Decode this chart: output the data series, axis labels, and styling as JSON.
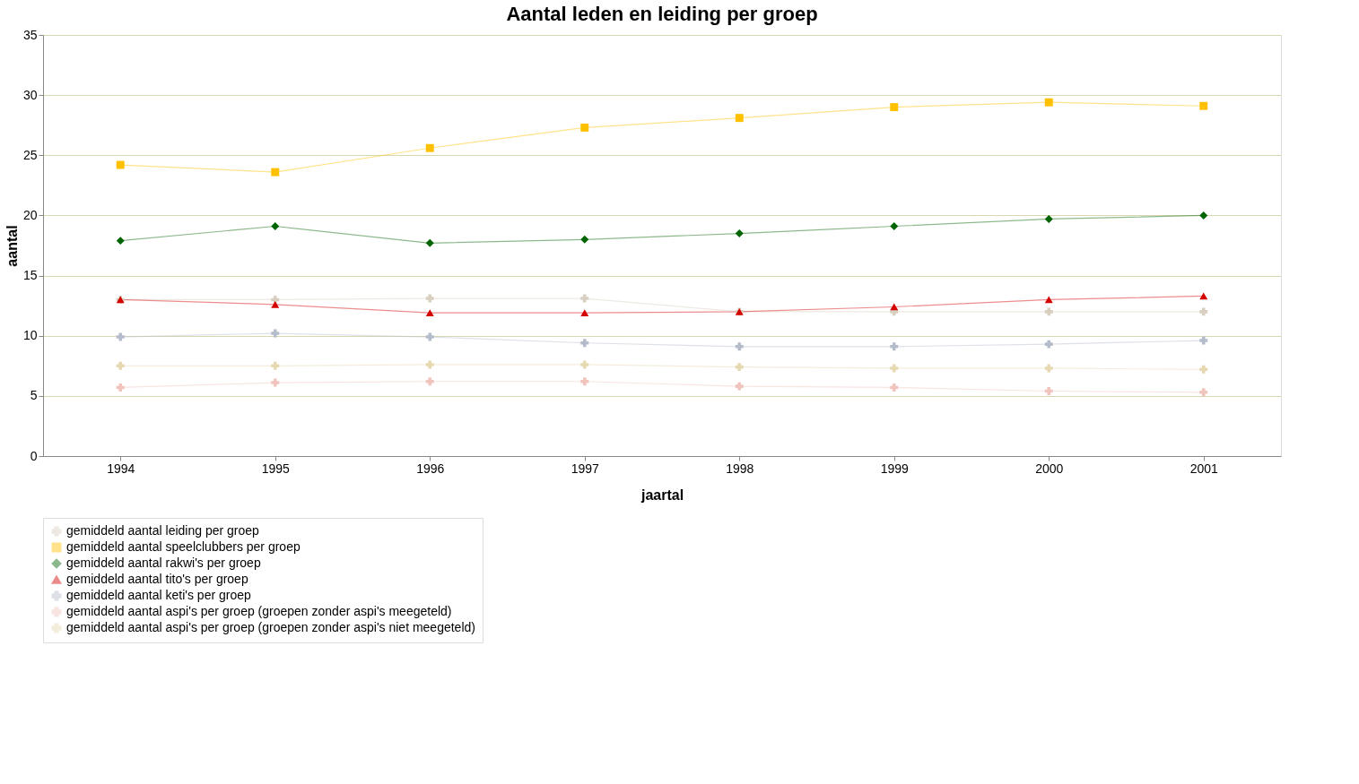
{
  "chart_data": {
    "type": "line",
    "title": "Aantal leden en leiding per groep",
    "xlabel": "jaartal",
    "ylabel": "aantal",
    "categories": [
      "1994",
      "1995",
      "1996",
      "1997",
      "1998",
      "1999",
      "2000",
      "2001"
    ],
    "ylim": [
      0,
      35
    ],
    "yticks": [
      0,
      5,
      10,
      15,
      20,
      25,
      30,
      35
    ],
    "grid": "y",
    "legend": "bottom",
    "line_style": "solid",
    "series": [
      {
        "name": "gemiddeld aantal leiding per groep",
        "color": "#d8cfc0",
        "marker": "cross",
        "values": [
          13.0,
          13.0,
          13.1,
          13.1,
          12.0,
          12.0,
          12.0,
          12.0
        ]
      },
      {
        "name": "gemiddeld aantal speelclubbers per groep",
        "color": "#ffc000",
        "marker": "square",
        "values": [
          24.2,
          23.6,
          25.6,
          27.3,
          28.1,
          29.0,
          29.4,
          29.1
        ]
      },
      {
        "name": "gemiddeld aantal rakwi's per groep",
        "color": "#006400",
        "marker": "diamond",
        "values": [
          17.9,
          19.1,
          17.7,
          18.0,
          18.5,
          19.1,
          19.7,
          20.0
        ]
      },
      {
        "name": "gemiddeld aantal tito's per groep",
        "color": "#d40000",
        "marker": "triangle",
        "values": [
          13.0,
          12.6,
          11.9,
          11.9,
          12.0,
          12.4,
          13.0,
          13.3
        ]
      },
      {
        "name": "gemiddeld aantal keti's per groep",
        "color": "#b4bccc",
        "marker": "cross",
        "values": [
          9.9,
          10.2,
          9.9,
          9.4,
          9.1,
          9.1,
          9.3,
          9.6
        ]
      },
      {
        "name": "gemiddeld aantal aspi's per groep (groepen zonder aspi's meegeteld)",
        "color": "#f0c4bc",
        "marker": "cross",
        "values": [
          5.7,
          6.1,
          6.2,
          6.2,
          5.8,
          5.7,
          5.4,
          5.3
        ]
      },
      {
        "name": "gemiddeld aantal aspi's per groep (groepen zonder aspi's niet meegeteld)",
        "color": "#e6d8b0",
        "marker": "cross",
        "values": [
          7.5,
          7.5,
          7.6,
          7.6,
          7.4,
          7.3,
          7.3,
          7.2
        ]
      }
    ]
  }
}
